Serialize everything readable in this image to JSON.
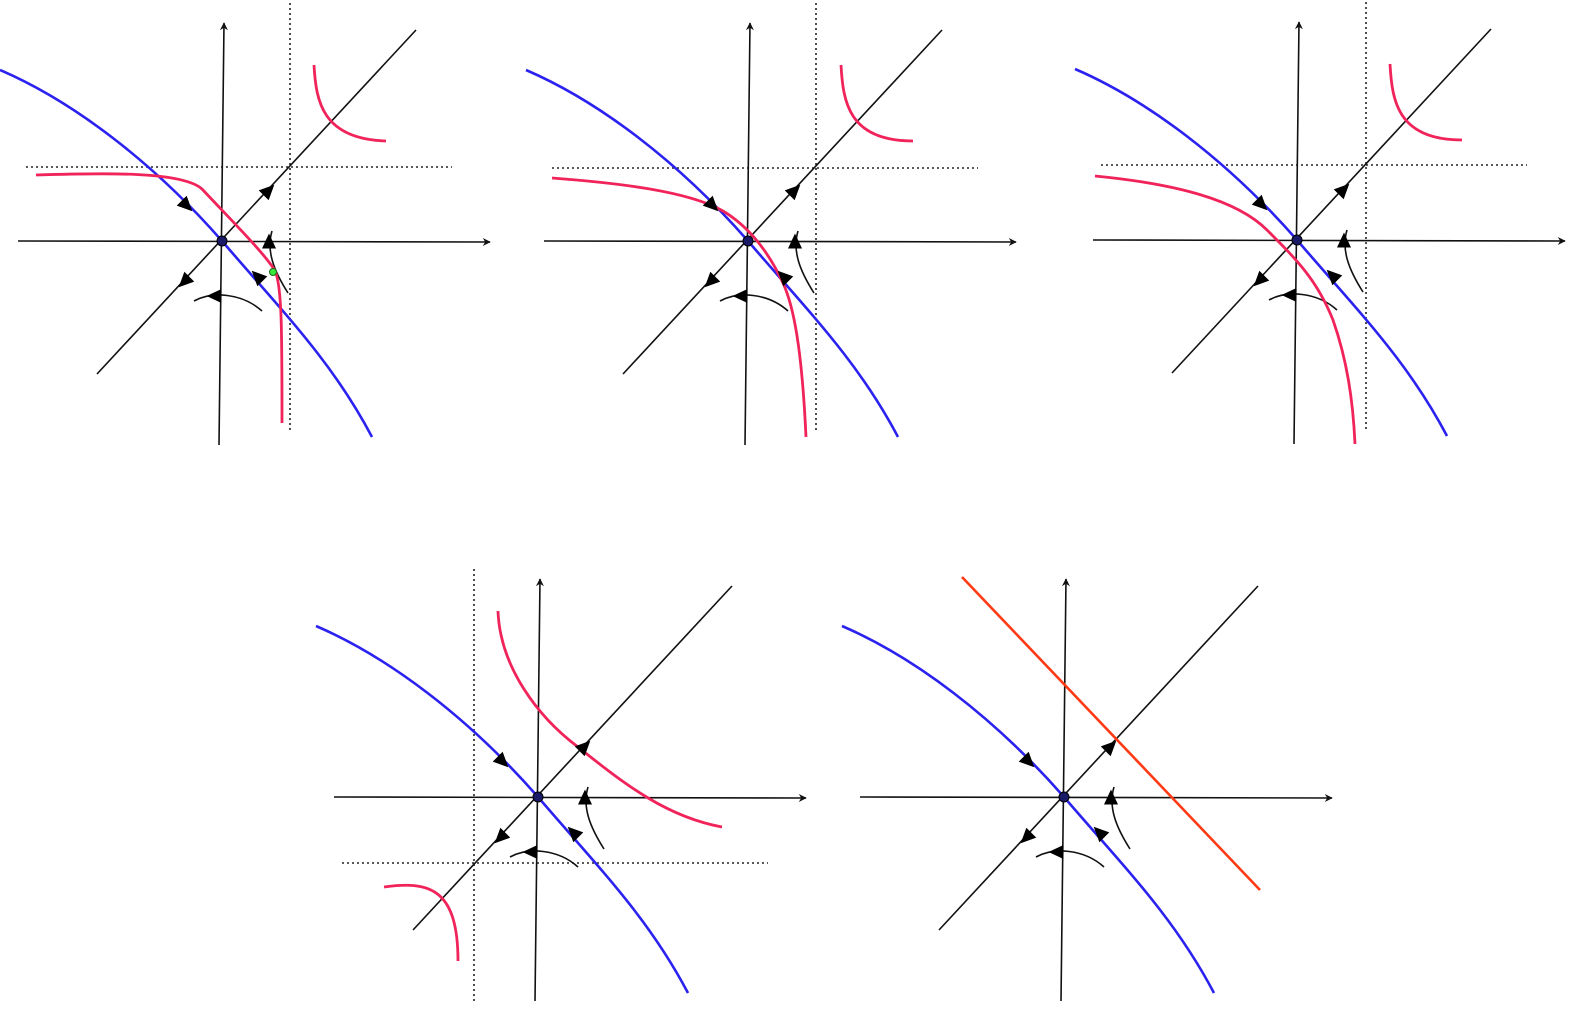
{
  "colors": {
    "axis": "#111111",
    "stable_manifold": "#2b22f0",
    "curve": "#f0245a",
    "line": "#ff3a14",
    "guide": "#222222",
    "equilibrium": "#1a1a66",
    "marker": "#39e639"
  },
  "panels": [
    {
      "name": "panel-1",
      "curve_type": "hyperbola-crossing-left",
      "asymptotes": true,
      "extra_point": true
    },
    {
      "name": "panel-2",
      "curve_type": "hyperbola-tangent",
      "asymptotes": true,
      "extra_point": false
    },
    {
      "name": "panel-3",
      "curve_type": "hyperbola-crossing-right",
      "asymptotes": true,
      "extra_point": false
    },
    {
      "name": "panel-4",
      "curve_type": "hyperbola-lower-branch",
      "asymptotes": true,
      "extra_point": false
    },
    {
      "name": "panel-5",
      "curve_type": "straight-line",
      "asymptotes": false,
      "extra_point": false
    }
  ]
}
